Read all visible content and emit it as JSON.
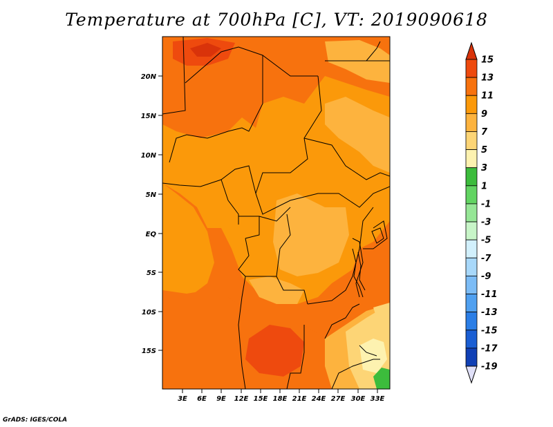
{
  "title": "Temperature at 700hPa [C], VT: 2019090618",
  "credit": "GrADS: IGES/COLA",
  "map": {
    "lat_labels": [
      "20N",
      "15N",
      "10N",
      "5N",
      "EQ",
      "5S",
      "10S",
      "15S"
    ],
    "lon_labels": [
      "3E",
      "6E",
      "9E",
      "12E",
      "15E",
      "18E",
      "21E",
      "24E",
      "27E",
      "30E",
      "33E"
    ],
    "colors": {
      "t13_15": "#ee4a0e",
      "t11_13": "#f7720e",
      "t9_11": "#fb990a",
      "t7_9": "#fdb33e",
      "t5_7": "#fdd576",
      "t3_5": "#fdf2b0",
      "t1_3": "#3cbc3c",
      "warmest": "#d9330a",
      "border": "#000000"
    }
  },
  "colorbar": {
    "labels": [
      "15",
      "13",
      "11",
      "9",
      "7",
      "5",
      "3",
      "1",
      "-1",
      "-3",
      "-5",
      "-7",
      "-9",
      "-11",
      "-13",
      "-15",
      "-17",
      "-19"
    ],
    "colors": [
      "#ee4a0e",
      "#f7720e",
      "#fb990a",
      "#fdb33e",
      "#fdd576",
      "#fdf2b0",
      "#3cbc3c",
      "#62d462",
      "#96e696",
      "#c8f5c8",
      "#d2f0fc",
      "#a8d8fa",
      "#7cbcf6",
      "#50a0f0",
      "#2b7ee6",
      "#1a5ed3",
      "#1040b5",
      "#0a2080"
    ],
    "top_arrow_color": "#d9330a",
    "bottom_arrow_color": "#e0e0f8"
  }
}
